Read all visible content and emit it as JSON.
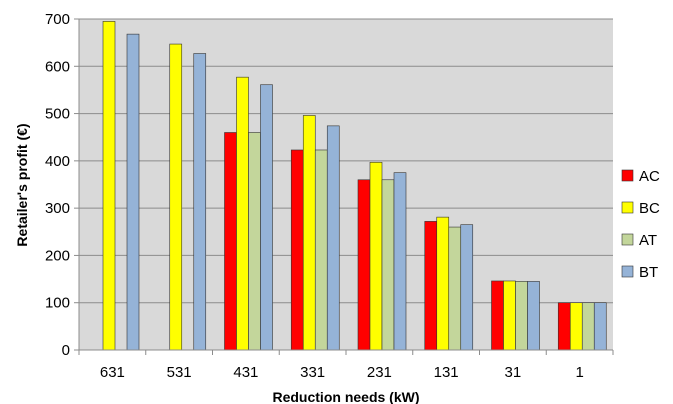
{
  "chart_data": {
    "type": "bar",
    "title": "",
    "xlabel": "Reduction needs (kW)",
    "ylabel": "Retailer's profit (€)",
    "ylim": [
      0,
      700
    ],
    "yticks": [
      0,
      100,
      200,
      300,
      400,
      500,
      600,
      700
    ],
    "grid": true,
    "legend_position": "right",
    "categories": [
      "631",
      "531",
      "431",
      "331",
      "231",
      "131",
      "31",
      "1"
    ],
    "series": [
      {
        "name": "AC",
        "color": "#ff0000",
        "values": [
          null,
          null,
          460,
          423,
          360,
          272,
          146,
          100
        ]
      },
      {
        "name": "BC",
        "color": "#ffff00",
        "values": [
          695,
          647,
          577,
          496,
          397,
          281,
          146,
          100
        ]
      },
      {
        "name": "AT",
        "color": "#c3d69b",
        "values": [
          null,
          null,
          460,
          423,
          360,
          260,
          145,
          100
        ]
      },
      {
        "name": "BT",
        "color": "#95b3d7",
        "values": [
          668,
          627,
          561,
          474,
          375,
          265,
          145,
          100
        ]
      }
    ]
  }
}
